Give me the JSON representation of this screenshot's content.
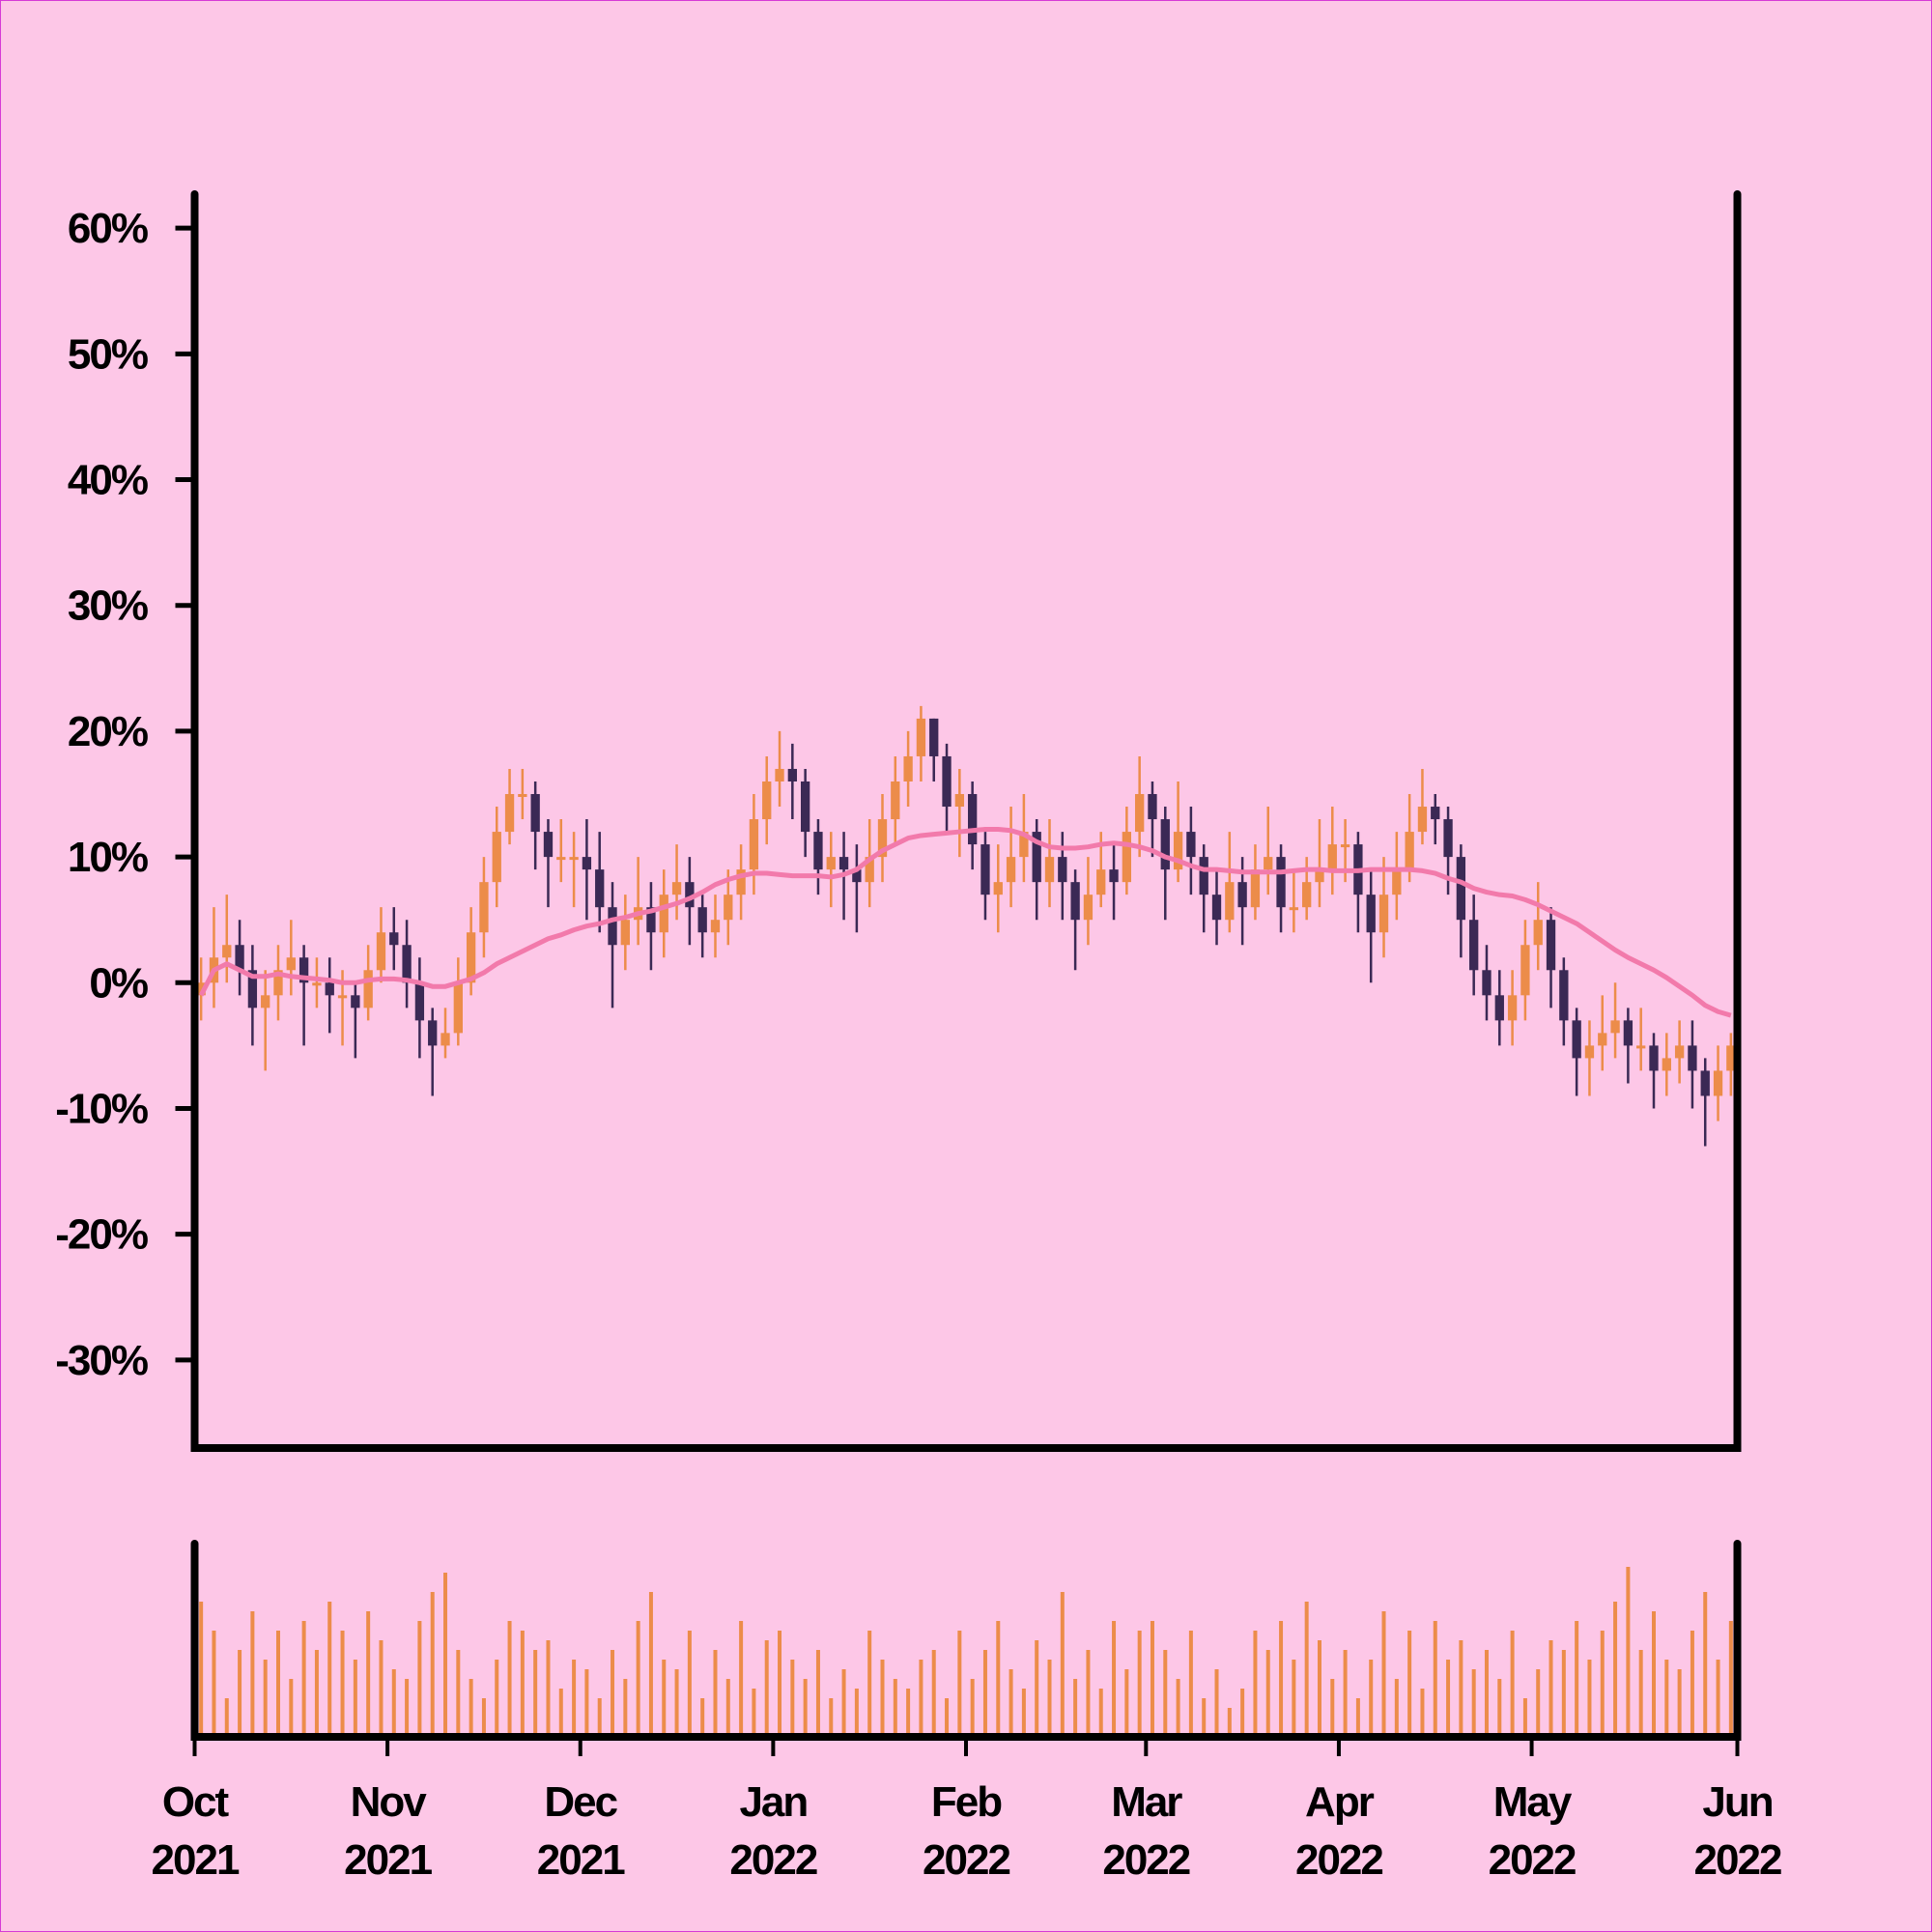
{
  "chart_data": {
    "type": "candlestick",
    "background": "#fdc7e7",
    "up_color": "#ec8c4a",
    "down_color": "#3b2955",
    "ma_color": "#f27aab",
    "volume_color": "#ec8c4a",
    "ylim": [
      -37,
      62.7
    ],
    "yticks": [
      {
        "value": 60,
        "label": "60%"
      },
      {
        "value": 50,
        "label": "50%"
      },
      {
        "value": 40,
        "label": "40%"
      },
      {
        "value": 30,
        "label": "30%"
      },
      {
        "value": 20,
        "label": "20%"
      },
      {
        "value": 10,
        "label": "10%"
      },
      {
        "value": 0,
        "label": "0%"
      },
      {
        "value": -10,
        "label": "-10%"
      },
      {
        "value": -20,
        "label": "-20%"
      },
      {
        "value": -30,
        "label": "-30%"
      }
    ],
    "xlim": [
      0,
      120
    ],
    "xticks": [
      {
        "value": 0,
        "label": "Oct 2021"
      },
      {
        "value": 15,
        "label": "Nov 2021"
      },
      {
        "value": 30,
        "label": "Dec 2021"
      },
      {
        "value": 45,
        "label": "Jan 2022"
      },
      {
        "value": 60,
        "label": "Feb 2022"
      },
      {
        "value": 74,
        "label": "Mar 2022"
      },
      {
        "value": 89,
        "label": "Apr 2022"
      },
      {
        "value": 104,
        "label": "May 2022"
      },
      {
        "value": 120,
        "label": "Jun 2022"
      }
    ],
    "open": [
      -1,
      0,
      2,
      3,
      1,
      -2,
      -1,
      1,
      2,
      0,
      0,
      -1,
      -1,
      -2,
      1,
      4,
      3,
      0,
      -3,
      -5,
      -4,
      0,
      4,
      8,
      12,
      15,
      15,
      12,
      10,
      10,
      10,
      9,
      6,
      3,
      5,
      6,
      4,
      7,
      8,
      6,
      4,
      5,
      7,
      9,
      13,
      16,
      17,
      16,
      12,
      9,
      10,
      9,
      8,
      10,
      13,
      16,
      18,
      21,
      18,
      14,
      15,
      11,
      7,
      8,
      10,
      12,
      8,
      10,
      8,
      5,
      7,
      9,
      8,
      12,
      15,
      13,
      9,
      12,
      10,
      7,
      5,
      8,
      6,
      9,
      10,
      6,
      6,
      8,
      9,
      11,
      11,
      7,
      4,
      7,
      9,
      12,
      14,
      13,
      10,
      5,
      1,
      -1,
      -3,
      -1,
      3,
      5,
      1,
      -3,
      -6,
      -5,
      -4,
      -3,
      -5,
      -5,
      -7,
      -6,
      -5,
      -7,
      -9,
      -7
    ],
    "high": [
      2,
      6,
      7,
      5,
      3,
      1,
      3,
      5,
      3,
      2,
      2,
      1,
      0,
      3,
      6,
      6,
      5,
      2,
      -2,
      -2,
      2,
      6,
      10,
      14,
      17,
      17,
      16,
      13,
      13,
      12,
      13,
      12,
      8,
      7,
      10,
      8,
      9,
      11,
      10,
      7,
      7,
      9,
      11,
      15,
      18,
      20,
      19,
      17,
      13,
      12,
      12,
      11,
      13,
      15,
      18,
      20,
      22,
      21,
      19,
      17,
      16,
      12,
      11,
      14,
      15,
      13,
      13,
      12,
      9,
      10,
      12,
      11,
      14,
      18,
      16,
      14,
      16,
      14,
      11,
      9,
      12,
      10,
      11,
      14,
      11,
      9,
      10,
      13,
      14,
      13,
      12,
      9,
      10,
      12,
      15,
      17,
      15,
      14,
      11,
      7,
      3,
      1,
      1,
      5,
      8,
      6,
      2,
      -2,
      -3,
      -1,
      0,
      -2,
      -2,
      -4,
      -4,
      -3,
      -3,
      -6,
      -5,
      -4
    ],
    "low": [
      -3,
      -2,
      0,
      -1,
      -5,
      -7,
      -3,
      -1,
      -5,
      -2,
      -4,
      -5,
      -6,
      -3,
      0,
      1,
      -2,
      -6,
      -9,
      -6,
      -5,
      -1,
      2,
      6,
      11,
      13,
      9,
      6,
      8,
      6,
      5,
      4,
      -2,
      1,
      3,
      1,
      2,
      5,
      3,
      2,
      2,
      3,
      5,
      7,
      11,
      14,
      13,
      10,
      7,
      6,
      5,
      4,
      6,
      8,
      11,
      14,
      16,
      16,
      12,
      10,
      9,
      5,
      4,
      6,
      8,
      5,
      6,
      5,
      1,
      3,
      6,
      5,
      7,
      10,
      10,
      5,
      8,
      7,
      4,
      3,
      4,
      3,
      5,
      7,
      4,
      4,
      5,
      6,
      7,
      8,
      4,
      0,
      2,
      5,
      8,
      11,
      11,
      7,
      2,
      -1,
      -3,
      -5,
      -5,
      -3,
      1,
      -2,
      -5,
      -9,
      -9,
      -7,
      -6,
      -8,
      -7,
      -10,
      -9,
      -8,
      -10,
      -13,
      -11,
      -9
    ],
    "close": [
      0,
      2,
      3,
      1,
      -2,
      -1,
      1,
      2,
      0,
      0,
      -1,
      -1,
      -2,
      1,
      4,
      3,
      0,
      -3,
      -5,
      -4,
      0,
      4,
      8,
      12,
      15,
      15,
      12,
      10,
      10,
      10,
      9,
      6,
      3,
      5,
      6,
      4,
      7,
      8,
      6,
      4,
      5,
      7,
      9,
      13,
      16,
      17,
      16,
      12,
      9,
      10,
      9,
      8,
      10,
      13,
      16,
      18,
      21,
      18,
      14,
      15,
      11,
      7,
      8,
      10,
      12,
      8,
      10,
      8,
      5,
      7,
      9,
      8,
      12,
      15,
      13,
      9,
      12,
      10,
      7,
      5,
      8,
      6,
      9,
      10,
      6,
      6,
      8,
      9,
      11,
      11,
      7,
      4,
      7,
      9,
      12,
      14,
      13,
      10,
      5,
      1,
      -1,
      -3,
      -1,
      3,
      5,
      1,
      -3,
      -6,
      -5,
      -4,
      -3,
      -5,
      -5,
      -7,
      -6,
      -5,
      -7,
      -9,
      -7,
      -5
    ],
    "ma_values": [
      -1,
      1,
      1.5,
      1,
      0.5,
      0.5,
      0.7,
      0.5,
      0.4,
      0.3,
      0.2,
      0,
      0,
      0.2,
      0.3,
      0.3,
      0.2,
      0,
      -0.3,
      -0.3,
      0,
      0.3,
      0.8,
      1.5,
      2,
      2.5,
      3,
      3.5,
      3.8,
      4.2,
      4.5,
      4.7,
      5,
      5.2,
      5.5,
      5.7,
      6,
      6.3,
      6.7,
      7.2,
      7.8,
      8.2,
      8.5,
      8.7,
      8.7,
      8.6,
      8.5,
      8.5,
      8.5,
      8.4,
      8.6,
      9,
      9.8,
      10.5,
      11,
      11.5,
      11.7,
      11.8,
      11.9,
      12,
      12.1,
      12.2,
      12.2,
      12.1,
      11.8,
      11.2,
      10.8,
      10.7,
      10.7,
      10.8,
      11,
      11.1,
      11,
      10.8,
      10.5,
      10,
      9.7,
      9.3,
      9,
      9,
      8.9,
      8.8,
      8.8,
      8.8,
      8.8,
      8.9,
      9,
      9,
      8.9,
      8.9,
      8.9,
      9,
      9,
      9,
      9,
      8.9,
      8.7,
      8.3,
      8,
      7.5,
      7.2,
      7,
      6.9,
      6.6,
      6.2,
      5.7,
      5.2,
      4.7,
      4,
      3.3,
      2.6,
      2,
      1.5,
      1,
      0.4,
      -0.3,
      -1,
      -1.8,
      -2.3,
      -2.6
    ],
    "volume_ylim": [
      0,
      100
    ],
    "volume": [
      70,
      55,
      20,
      45,
      65,
      40,
      55,
      30,
      60,
      45,
      70,
      55,
      40,
      65,
      50,
      35,
      30,
      60,
      75,
      85,
      45,
      30,
      20,
      40,
      60,
      55,
      45,
      50,
      25,
      40,
      35,
      20,
      45,
      30,
      60,
      75,
      40,
      35,
      55,
      20,
      45,
      30,
      60,
      25,
      50,
      55,
      40,
      30,
      45,
      20,
      35,
      25,
      55,
      40,
      30,
      25,
      40,
      45,
      20,
      55,
      30,
      45,
      60,
      35,
      25,
      50,
      40,
      75,
      30,
      45,
      25,
      60,
      35,
      55,
      60,
      45,
      30,
      55,
      20,
      35,
      15,
      25,
      55,
      45,
      60,
      40,
      70,
      50,
      30,
      45,
      20,
      40,
      65,
      30,
      55,
      25,
      60,
      40,
      50,
      35,
      45,
      30,
      55,
      20,
      35,
      50,
      45,
      60,
      40,
      55,
      70,
      88,
      45,
      65,
      40,
      35,
      55,
      75,
      40,
      60
    ]
  }
}
